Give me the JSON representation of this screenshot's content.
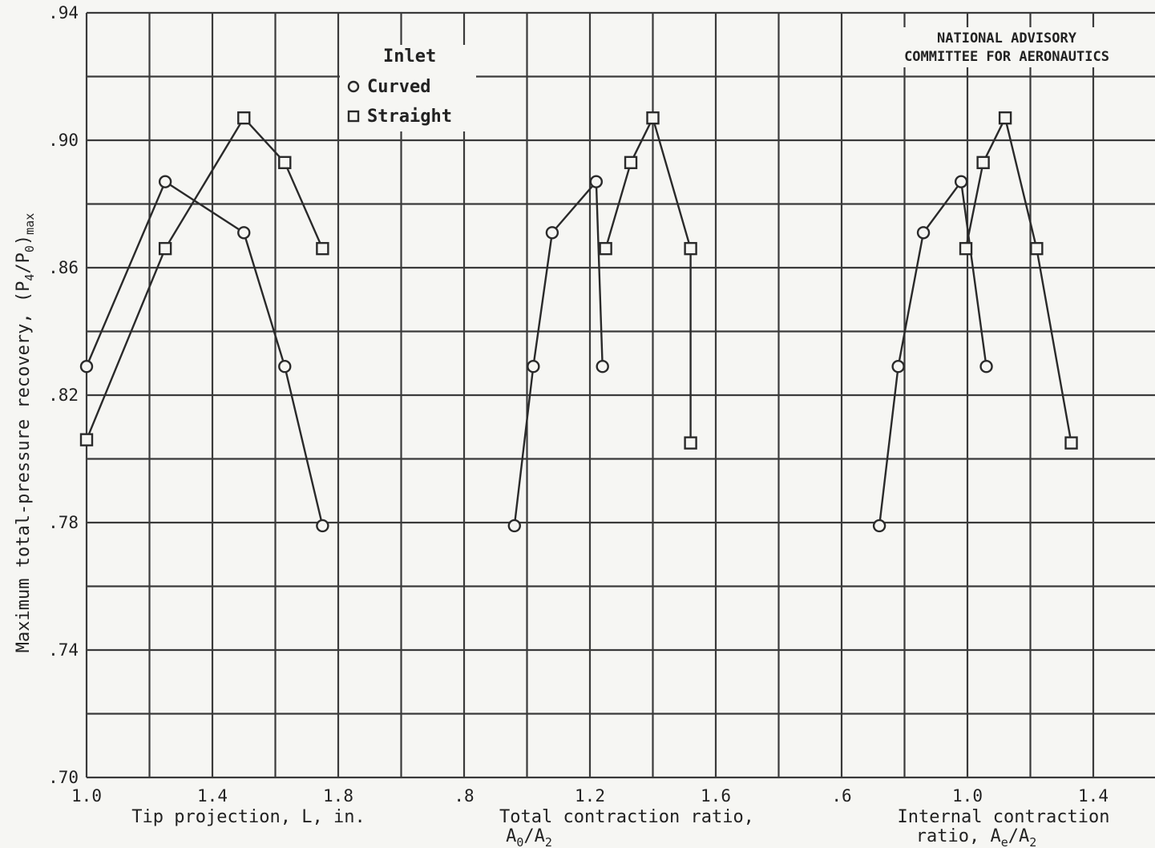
{
  "chart_data": [
    {
      "type": "line",
      "xlabel": "Tip projection, L, in.",
      "xlim": [
        1.0,
        1.8
      ],
      "xticks": [
        "1.0",
        "1.4",
        "1.8"
      ],
      "ylabel": "Maximum total-pressure recovery, (P4/P0)max",
      "ylim": [
        0.7,
        0.94
      ],
      "yticks": [
        ".70",
        ".74",
        ".78",
        ".82",
        ".86",
        ".90",
        ".94"
      ],
      "series": [
        {
          "name": "Curved",
          "marker": "circle",
          "x": [
            1.0,
            1.25,
            1.5,
            1.63,
            1.75
          ],
          "y": [
            0.829,
            0.887,
            0.871,
            0.829,
            0.779
          ]
        },
        {
          "name": "Straight",
          "marker": "square",
          "x": [
            1.0,
            1.25,
            1.5,
            1.63,
            1.75
          ],
          "y": [
            0.806,
            0.866,
            0.907,
            0.893,
            0.866
          ]
        }
      ]
    },
    {
      "type": "line",
      "xlabel_line1": "Total contraction ratio,",
      "xlabel_line2": "A0/A2",
      "xlim": [
        0.8,
        1.6
      ],
      "xticks": [
        ".8",
        "1.2",
        "1.6"
      ],
      "series": [
        {
          "name": "Curved",
          "marker": "circle",
          "x": [
            0.96,
            1.02,
            1.08,
            1.22,
            1.24
          ],
          "y": [
            0.779,
            0.829,
            0.871,
            0.887,
            0.829
          ]
        },
        {
          "name": "Straight",
          "marker": "square",
          "x": [
            1.25,
            1.33,
            1.4,
            1.52,
            1.52
          ],
          "y": [
            0.866,
            0.893,
            0.907,
            0.866,
            0.805
          ]
        }
      ]
    },
    {
      "type": "line",
      "xlabel_line1": "Internal contraction",
      "xlabel_line2": "ratio, Ae/A2",
      "xlim": [
        0.6,
        1.4
      ],
      "xticks": [
        ".6",
        "1.0",
        "1.4"
      ],
      "series": [
        {
          "name": "Curved",
          "marker": "circle",
          "x": [
            0.72,
            0.78,
            0.86,
            0.98,
            1.06
          ],
          "y": [
            0.779,
            0.829,
            0.871,
            0.887,
            0.829
          ]
        },
        {
          "name": "Straight",
          "marker": "square",
          "x": [
            0.995,
            1.05,
            1.12,
            1.22,
            1.33
          ],
          "y": [
            0.866,
            0.893,
            0.907,
            0.866,
            0.805
          ]
        }
      ]
    }
  ],
  "legend": {
    "title": "Inlet",
    "curved": "Curved",
    "straight": "Straight"
  },
  "note": {
    "line1": "NATIONAL ADVISORY",
    "line2": "COMMITTEE FOR AERONAUTICS"
  },
  "ylabel_main": "Maximum total-pressure recovery, (P",
  "ylabel_sub1": "4",
  "ylabel_mid": "/P",
  "ylabel_sub2": "0",
  "ylabel_end": ")",
  "ylabel_sub3": "max",
  "xlabel2_a": "A",
  "xlabel2_sub1": "0",
  "xlabel2_b": "/A",
  "xlabel2_sub2": "2",
  "xlabel3_a": "ratio, A",
  "xlabel3_sub1": "e",
  "xlabel3_b": "/A",
  "xlabel3_sub2": "2"
}
